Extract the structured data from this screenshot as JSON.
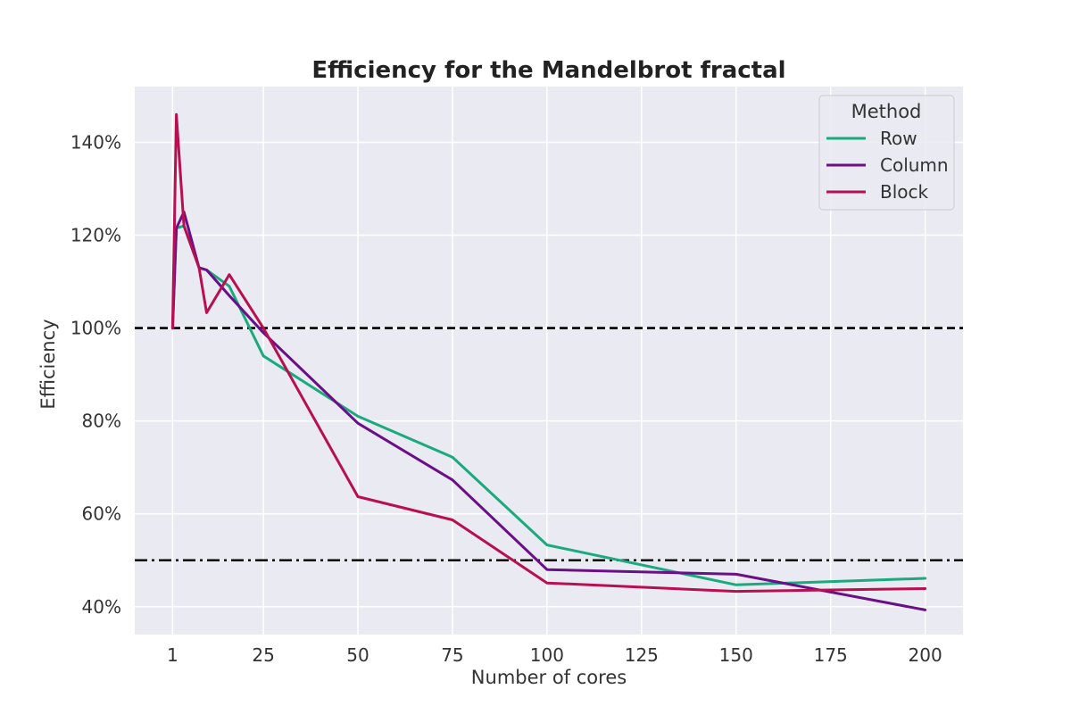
{
  "chart_data": {
    "type": "line",
    "title": "Efficiency for the Mandelbrot fractal",
    "xlabel": "Number of cores",
    "ylabel": "Efficiency",
    "x_ticks": [
      1,
      25,
      50,
      75,
      100,
      125,
      150,
      175,
      200
    ],
    "x_tick_labels": [
      "1",
      "25",
      "50",
      "75",
      "100",
      "125",
      "150",
      "175",
      "200"
    ],
    "y_ticks": [
      40,
      60,
      80,
      100,
      120,
      140
    ],
    "y_tick_labels": [
      "40%",
      "60%",
      "80%",
      "100%",
      "120%",
      "140%"
    ],
    "xlim": [
      -9,
      210
    ],
    "ylim": [
      34,
      152
    ],
    "grid": true,
    "background": "#eaeaf2",
    "legend": {
      "title": "Method",
      "placement": "top-right"
    },
    "x": [
      1,
      2,
      4,
      8,
      10,
      16,
      25,
      50,
      75,
      100,
      150,
      200
    ],
    "series": [
      {
        "name": "Row",
        "color": "#1aaa7d",
        "values": [
          100,
          121.5,
          122,
          113,
          112.5,
          109,
          94,
          81,
          72.2,
          53.3,
          44.7,
          46.1
        ]
      },
      {
        "name": "Column",
        "color": "#6a0f87",
        "values": [
          100,
          121.5,
          125,
          113,
          112.5,
          107,
          99,
          79.5,
          67.3,
          48,
          47,
          39.3
        ]
      },
      {
        "name": "Block",
        "color": "#b80f50",
        "values": [
          100,
          146,
          122,
          113,
          103.3,
          111.5,
          100,
          63.7,
          58.7,
          45.1,
          43.3,
          43.9
        ]
      }
    ],
    "reference_lines": [
      {
        "value": 100,
        "style": "dashed",
        "color": "#000000"
      },
      {
        "value": 50,
        "style": "dashdot",
        "color": "#000000"
      }
    ]
  }
}
